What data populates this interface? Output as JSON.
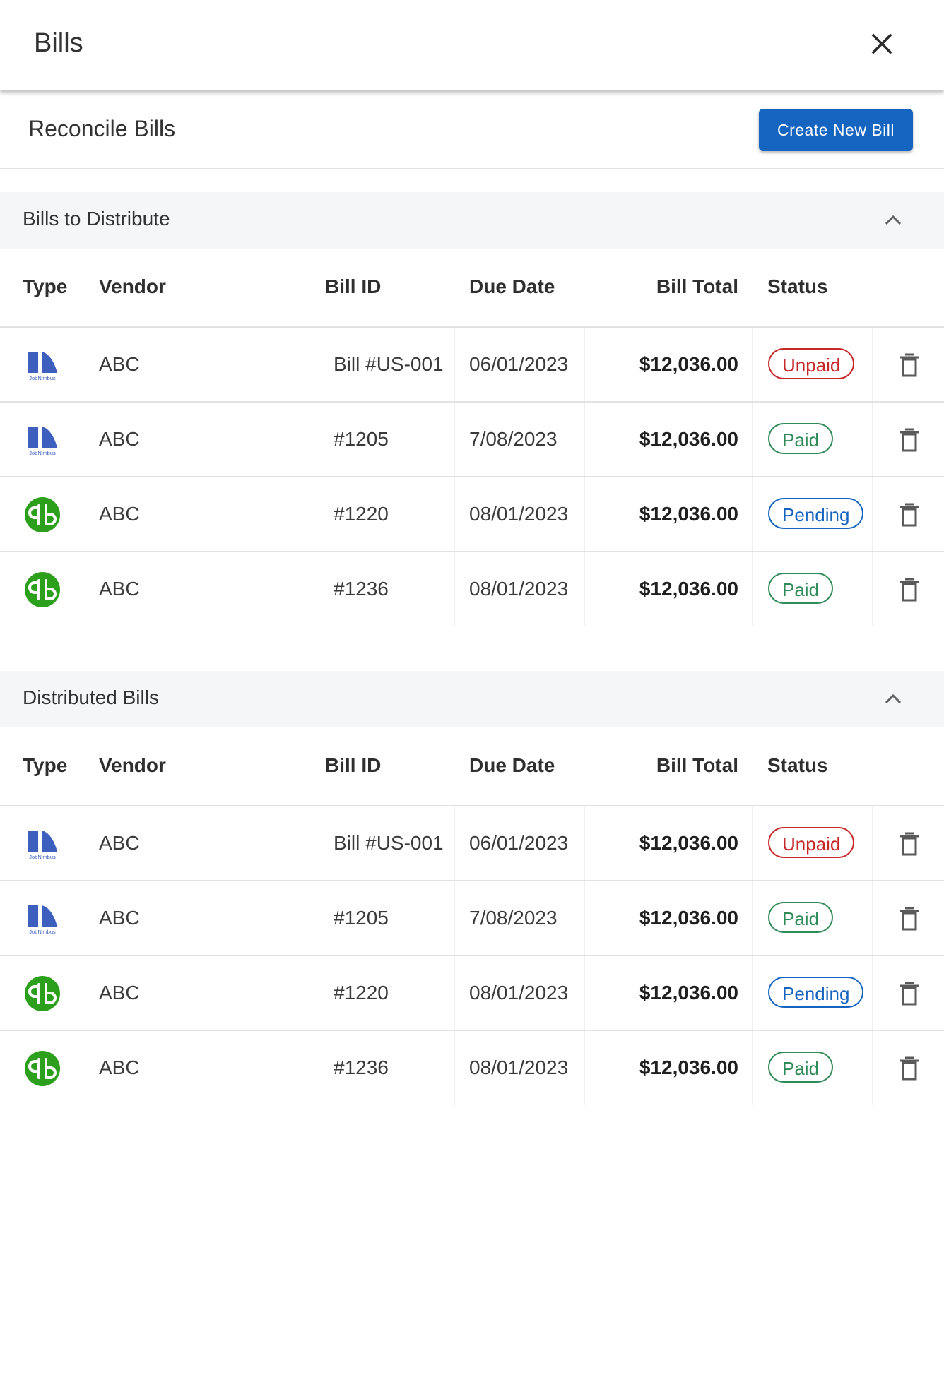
{
  "header": {
    "title": "Bills"
  },
  "subheader": {
    "title": "Reconcile Bills",
    "create_label": "Create New Bill"
  },
  "columns": {
    "type": "Type",
    "vendor": "Vendor",
    "bill_id": "Bill ID",
    "due_date": "Due Date",
    "bill_total": "Bill Total",
    "status": "Status"
  },
  "colors": {
    "accent": "#1565c0",
    "unpaid": "#c62828",
    "paid": "#2e8b57",
    "pending": "#1565c0",
    "quickbooks": "#2ca01c",
    "jobnimbus": "#3d5fbe"
  },
  "sections": [
    {
      "title": "Bills to Distribute",
      "rows": [
        {
          "type_icon": "jobnimbus-logo-icon",
          "vendor": "ABC",
          "bill_id": "Bill #US-001",
          "due_date": "06/01/2023",
          "total": "$12,036.00",
          "status": "Unpaid",
          "status_kind": "unpaid"
        },
        {
          "type_icon": "jobnimbus-logo-icon",
          "vendor": "ABC",
          "bill_id": "#1205",
          "due_date": "7/08/2023",
          "total": "$12,036.00",
          "status": "Paid",
          "status_kind": "paid"
        },
        {
          "type_icon": "quickbooks-logo-icon",
          "vendor": "ABC",
          "bill_id": "#1220",
          "due_date": "08/01/2023",
          "total": "$12,036.00",
          "status": "Pending",
          "status_kind": "pending"
        },
        {
          "type_icon": "quickbooks-logo-icon",
          "vendor": "ABC",
          "bill_id": "#1236",
          "due_date": "08/01/2023",
          "total": "$12,036.00",
          "status": "Paid",
          "status_kind": "paid"
        }
      ]
    },
    {
      "title": "Distributed Bills",
      "rows": [
        {
          "type_icon": "jobnimbus-logo-icon",
          "vendor": "ABC",
          "bill_id": "Bill #US-001",
          "due_date": "06/01/2023",
          "total": "$12,036.00",
          "status": "Unpaid",
          "status_kind": "unpaid"
        },
        {
          "type_icon": "jobnimbus-logo-icon",
          "vendor": "ABC",
          "bill_id": "#1205",
          "due_date": "7/08/2023",
          "total": "$12,036.00",
          "status": "Paid",
          "status_kind": "paid"
        },
        {
          "type_icon": "quickbooks-logo-icon",
          "vendor": "ABC",
          "bill_id": "#1220",
          "due_date": "08/01/2023",
          "total": "$12,036.00",
          "status": "Pending",
          "status_kind": "pending"
        },
        {
          "type_icon": "quickbooks-logo-icon",
          "vendor": "ABC",
          "bill_id": "#1236",
          "due_date": "08/01/2023",
          "total": "$12,036.00",
          "status": "Paid",
          "status_kind": "paid"
        }
      ]
    }
  ]
}
